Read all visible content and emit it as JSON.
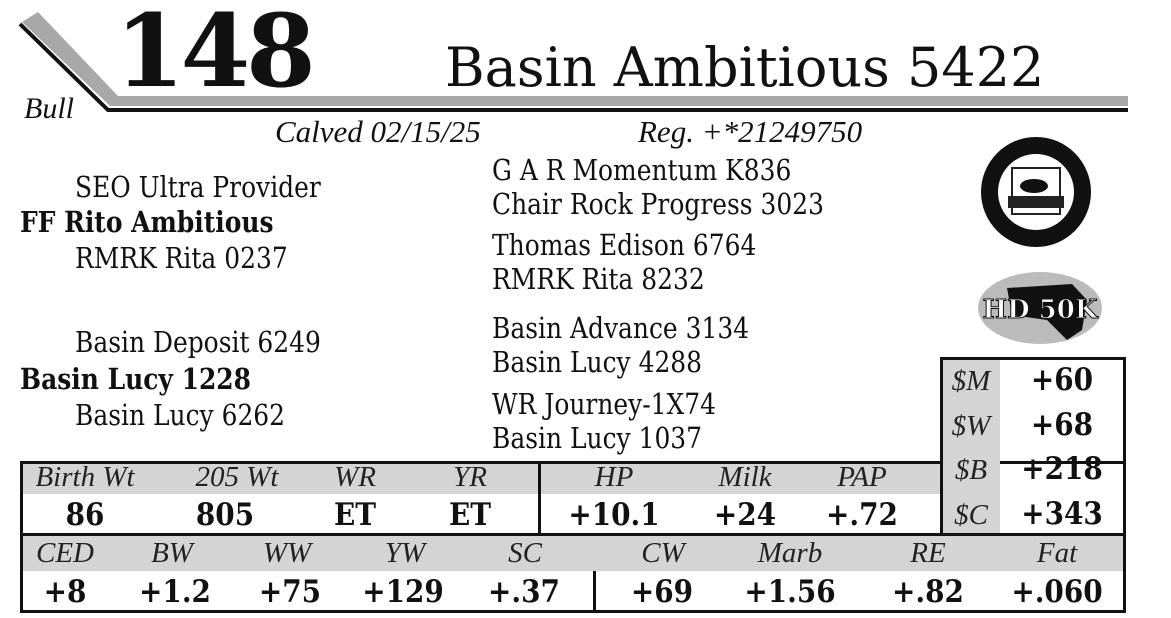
{
  "header": {
    "sex": "Bull",
    "lot_number": "148",
    "animal_name": "Basin Ambitious 5422",
    "calved": "Calved 02/15/25",
    "registration": "Reg. +*21249750"
  },
  "pedigree": {
    "sire": "FF Rito Ambitious",
    "sire_sire": "SEO Ultra Provider",
    "sire_dam": "RMRK Rita 0237",
    "dam": "Basin Lucy 1228",
    "dam_sire": "Basin Deposit 6249",
    "dam_dam": "Basin Lucy 6262",
    "gen3": [
      "G A R Momentum K836",
      "Chair Rock Progress 3023",
      "Thomas Edison 6764",
      "RMRK Rita 8232",
      "Basin Advance 3134",
      "Basin Lucy 4288",
      "WR Journey-1X74",
      "Basin Lucy 1037"
    ]
  },
  "logos": {
    "cab": "Targeting the Brand - Certified Angus Beef",
    "hd50k": "HD 50K"
  },
  "performance": {
    "headers": [
      "Birth Wt",
      "205 Wt",
      "WR",
      "YR",
      "HP",
      "Milk",
      "PAP"
    ],
    "values": [
      "86",
      "805",
      "ET",
      "ET",
      "+10.1",
      "+24",
      "+.72"
    ]
  },
  "dollar_indexes": [
    {
      "label": "$M",
      "value": "+60"
    },
    {
      "label": "$W",
      "value": "+68"
    },
    {
      "label": "$B",
      "value": "+218"
    },
    {
      "label": "$C",
      "value": "+343"
    }
  ],
  "epds": {
    "headers": [
      "CED",
      "BW",
      "WW",
      "YW",
      "SC",
      "CW",
      "Marb",
      "RE",
      "Fat"
    ],
    "values": [
      "+8",
      "+1.2",
      "+75",
      "+129",
      "+.37",
      "+69",
      "+1.56",
      "+.82",
      "+.060"
    ]
  }
}
